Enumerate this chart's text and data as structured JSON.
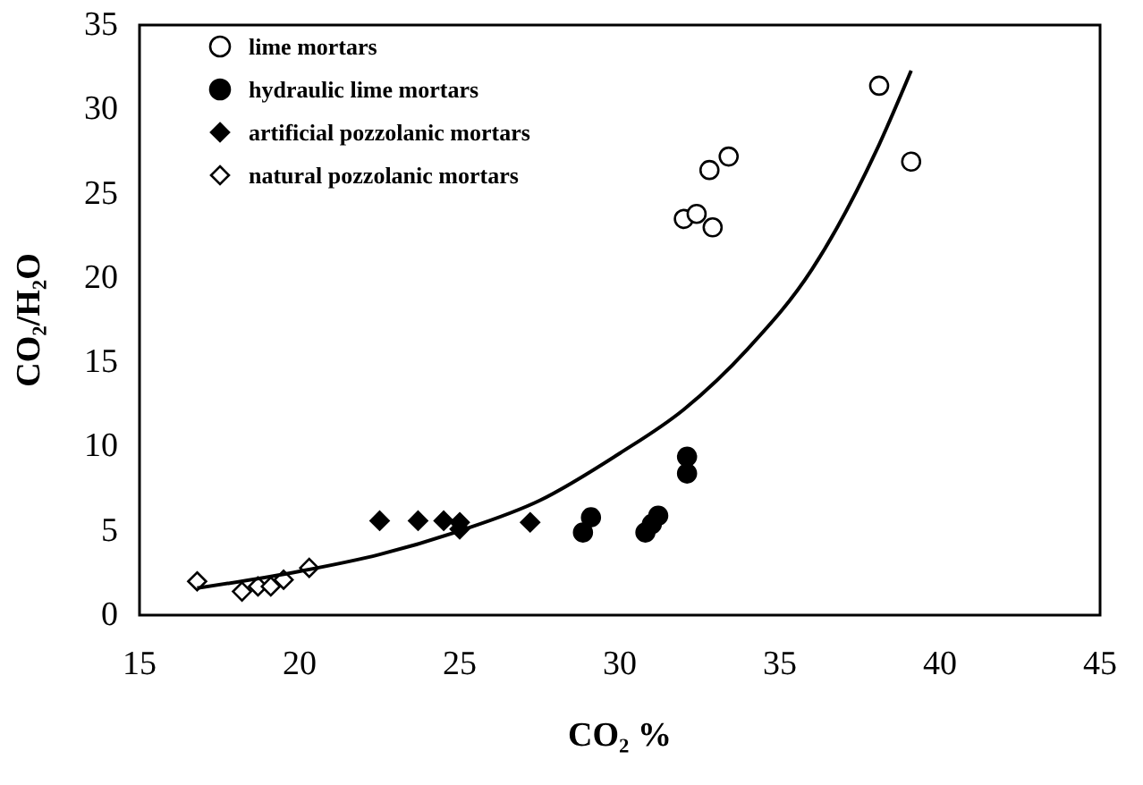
{
  "chart_data": {
    "type": "scatter",
    "xlabel": "CO₂ %",
    "ylabel": "CO₂/H₂O",
    "xlim": [
      15,
      45
    ],
    "ylim": [
      0,
      35
    ],
    "xticks": [
      15,
      20,
      25,
      30,
      35,
      40,
      45
    ],
    "yticks": [
      0,
      5,
      10,
      15,
      20,
      25,
      30,
      35
    ],
    "grid": false,
    "legend": "top left",
    "series": [
      {
        "name": "lime mortars",
        "color": "#ffffff",
        "marker": "circle",
        "x": [
          32.0,
          32.4,
          32.9,
          32.8,
          33.4,
          38.1,
          39.1
        ],
        "values": [
          23.5,
          23.8,
          23.0,
          26.4,
          27.2,
          31.4,
          26.9
        ]
      },
      {
        "name": "hydraulic lime mortars",
        "color": "#000000",
        "marker": "circle",
        "x": [
          28.85,
          29.1,
          30.8,
          31.0,
          31.2,
          32.1,
          32.1
        ],
        "values": [
          4.9,
          5.8,
          4.9,
          5.4,
          5.9,
          9.4,
          8.4
        ]
      },
      {
        "name": "artificial pozzolanic mortars",
        "color": "#000000",
        "marker": "diamond",
        "x": [
          22.5,
          23.7,
          24.5,
          25.0,
          25.0,
          27.2
        ],
        "values": [
          5.6,
          5.6,
          5.6,
          5.5,
          5.1,
          5.5
        ]
      },
      {
        "name": "natural pozzolanic mortars",
        "color": "#ffffff",
        "marker": "diamond",
        "x": [
          16.8,
          18.2,
          18.7,
          19.1,
          19.5,
          20.3
        ],
        "values": [
          2.0,
          1.4,
          1.7,
          1.7,
          2.1,
          2.8
        ]
      },
      {
        "type": "line",
        "color": "#000000",
        "marker": "none",
        "x": [
          16.8,
          20,
          22.5,
          25,
          27.5,
          30,
          32,
          34,
          36,
          38,
          39.1
        ],
        "values": [
          1.6,
          2.6,
          3.6,
          5.0,
          6.8,
          9.6,
          12.2,
          15.8,
          20.5,
          27.5,
          32.3
        ]
      }
    ]
  }
}
